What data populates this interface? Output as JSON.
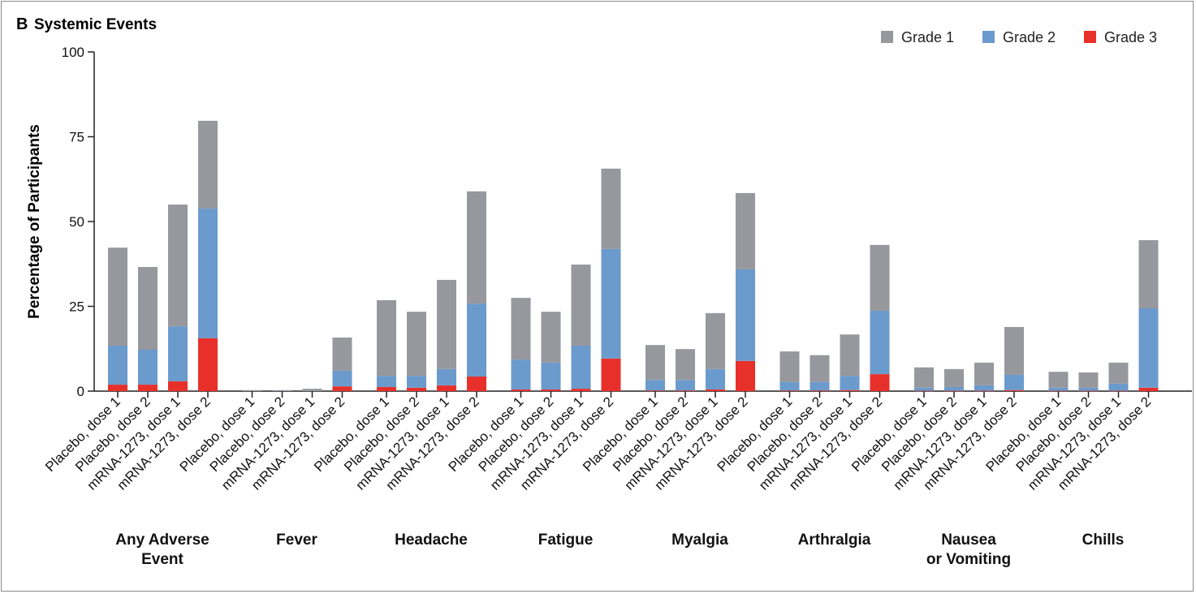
{
  "chart_data": {
    "type": "bar",
    "stacked": true,
    "panel_label": "B",
    "title": "Systemic Events",
    "ylabel": "Percentage of Participants",
    "xlabel": "",
    "ylim": [
      0,
      100
    ],
    "yticks": [
      0,
      25,
      50,
      75,
      100
    ],
    "legend_position": "top-right",
    "legend": [
      {
        "name": "Grade 1",
        "color": "#96989d"
      },
      {
        "name": "Grade 2",
        "color": "#6b9acd"
      },
      {
        "name": "Grade 3",
        "color": "#e8302a"
      }
    ],
    "bar_labels": [
      "Placebo, dose 1",
      "Placebo, dose 2",
      "mRNA-1273, dose 1",
      "mRNA-1273, dose 2"
    ],
    "groups": [
      {
        "name": [
          "Any Adverse",
          "Event"
        ],
        "grade3": [
          1.9,
          1.9,
          2.9,
          15.6
        ],
        "grade2": [
          11.5,
          10.3,
          16.2,
          38.2
        ],
        "grade1": [
          28.9,
          24.4,
          35.9,
          25.9
        ]
      },
      {
        "name": [
          "Fever"
        ],
        "grade3": [
          0,
          0,
          0,
          1.4
        ],
        "grade2": [
          0,
          0,
          0,
          4.6
        ],
        "grade1": [
          0.3,
          0.3,
          0.7,
          9.8
        ]
      },
      {
        "name": [
          "Headache"
        ],
        "grade3": [
          1.2,
          1.0,
          1.7,
          4.3
        ],
        "grade2": [
          3.3,
          3.5,
          4.8,
          21.5
        ],
        "grade1": [
          22.3,
          18.9,
          26.3,
          33.1
        ]
      },
      {
        "name": [
          "Fatigue"
        ],
        "grade3": [
          0.5,
          0.5,
          0.7,
          9.6
        ],
        "grade2": [
          8.8,
          7.9,
          12.7,
          32.3
        ],
        "grade1": [
          18.2,
          15.0,
          23.9,
          23.7
        ]
      },
      {
        "name": [
          "Myalgia"
        ],
        "grade3": [
          0.2,
          0.2,
          0.5,
          8.9
        ],
        "grade2": [
          3.1,
          3.1,
          6.0,
          27.0
        ],
        "grade1": [
          10.3,
          9.1,
          16.5,
          22.5
        ]
      },
      {
        "name": [
          "Arthralgia"
        ],
        "grade3": [
          0.2,
          0.2,
          0.3,
          5.0
        ],
        "grade2": [
          2.5,
          2.5,
          4.2,
          18.7
        ],
        "grade1": [
          9.0,
          7.9,
          12.2,
          19.4
        ]
      },
      {
        "name": [
          "Nausea",
          "or Vomiting"
        ],
        "grade3": [
          0.1,
          0.1,
          0.1,
          0.3
        ],
        "grade2": [
          0.9,
          1.1,
          1.6,
          4.5
        ],
        "grade1": [
          6.0,
          5.3,
          6.7,
          14.1
        ]
      },
      {
        "name": [
          "Chills"
        ],
        "grade3": [
          0.1,
          0.1,
          0.1,
          1.0
        ],
        "grade2": [
          0.9,
          0.9,
          2.1,
          23.4
        ],
        "grade1": [
          4.7,
          4.5,
          6.2,
          20.1
        ]
      }
    ]
  }
}
